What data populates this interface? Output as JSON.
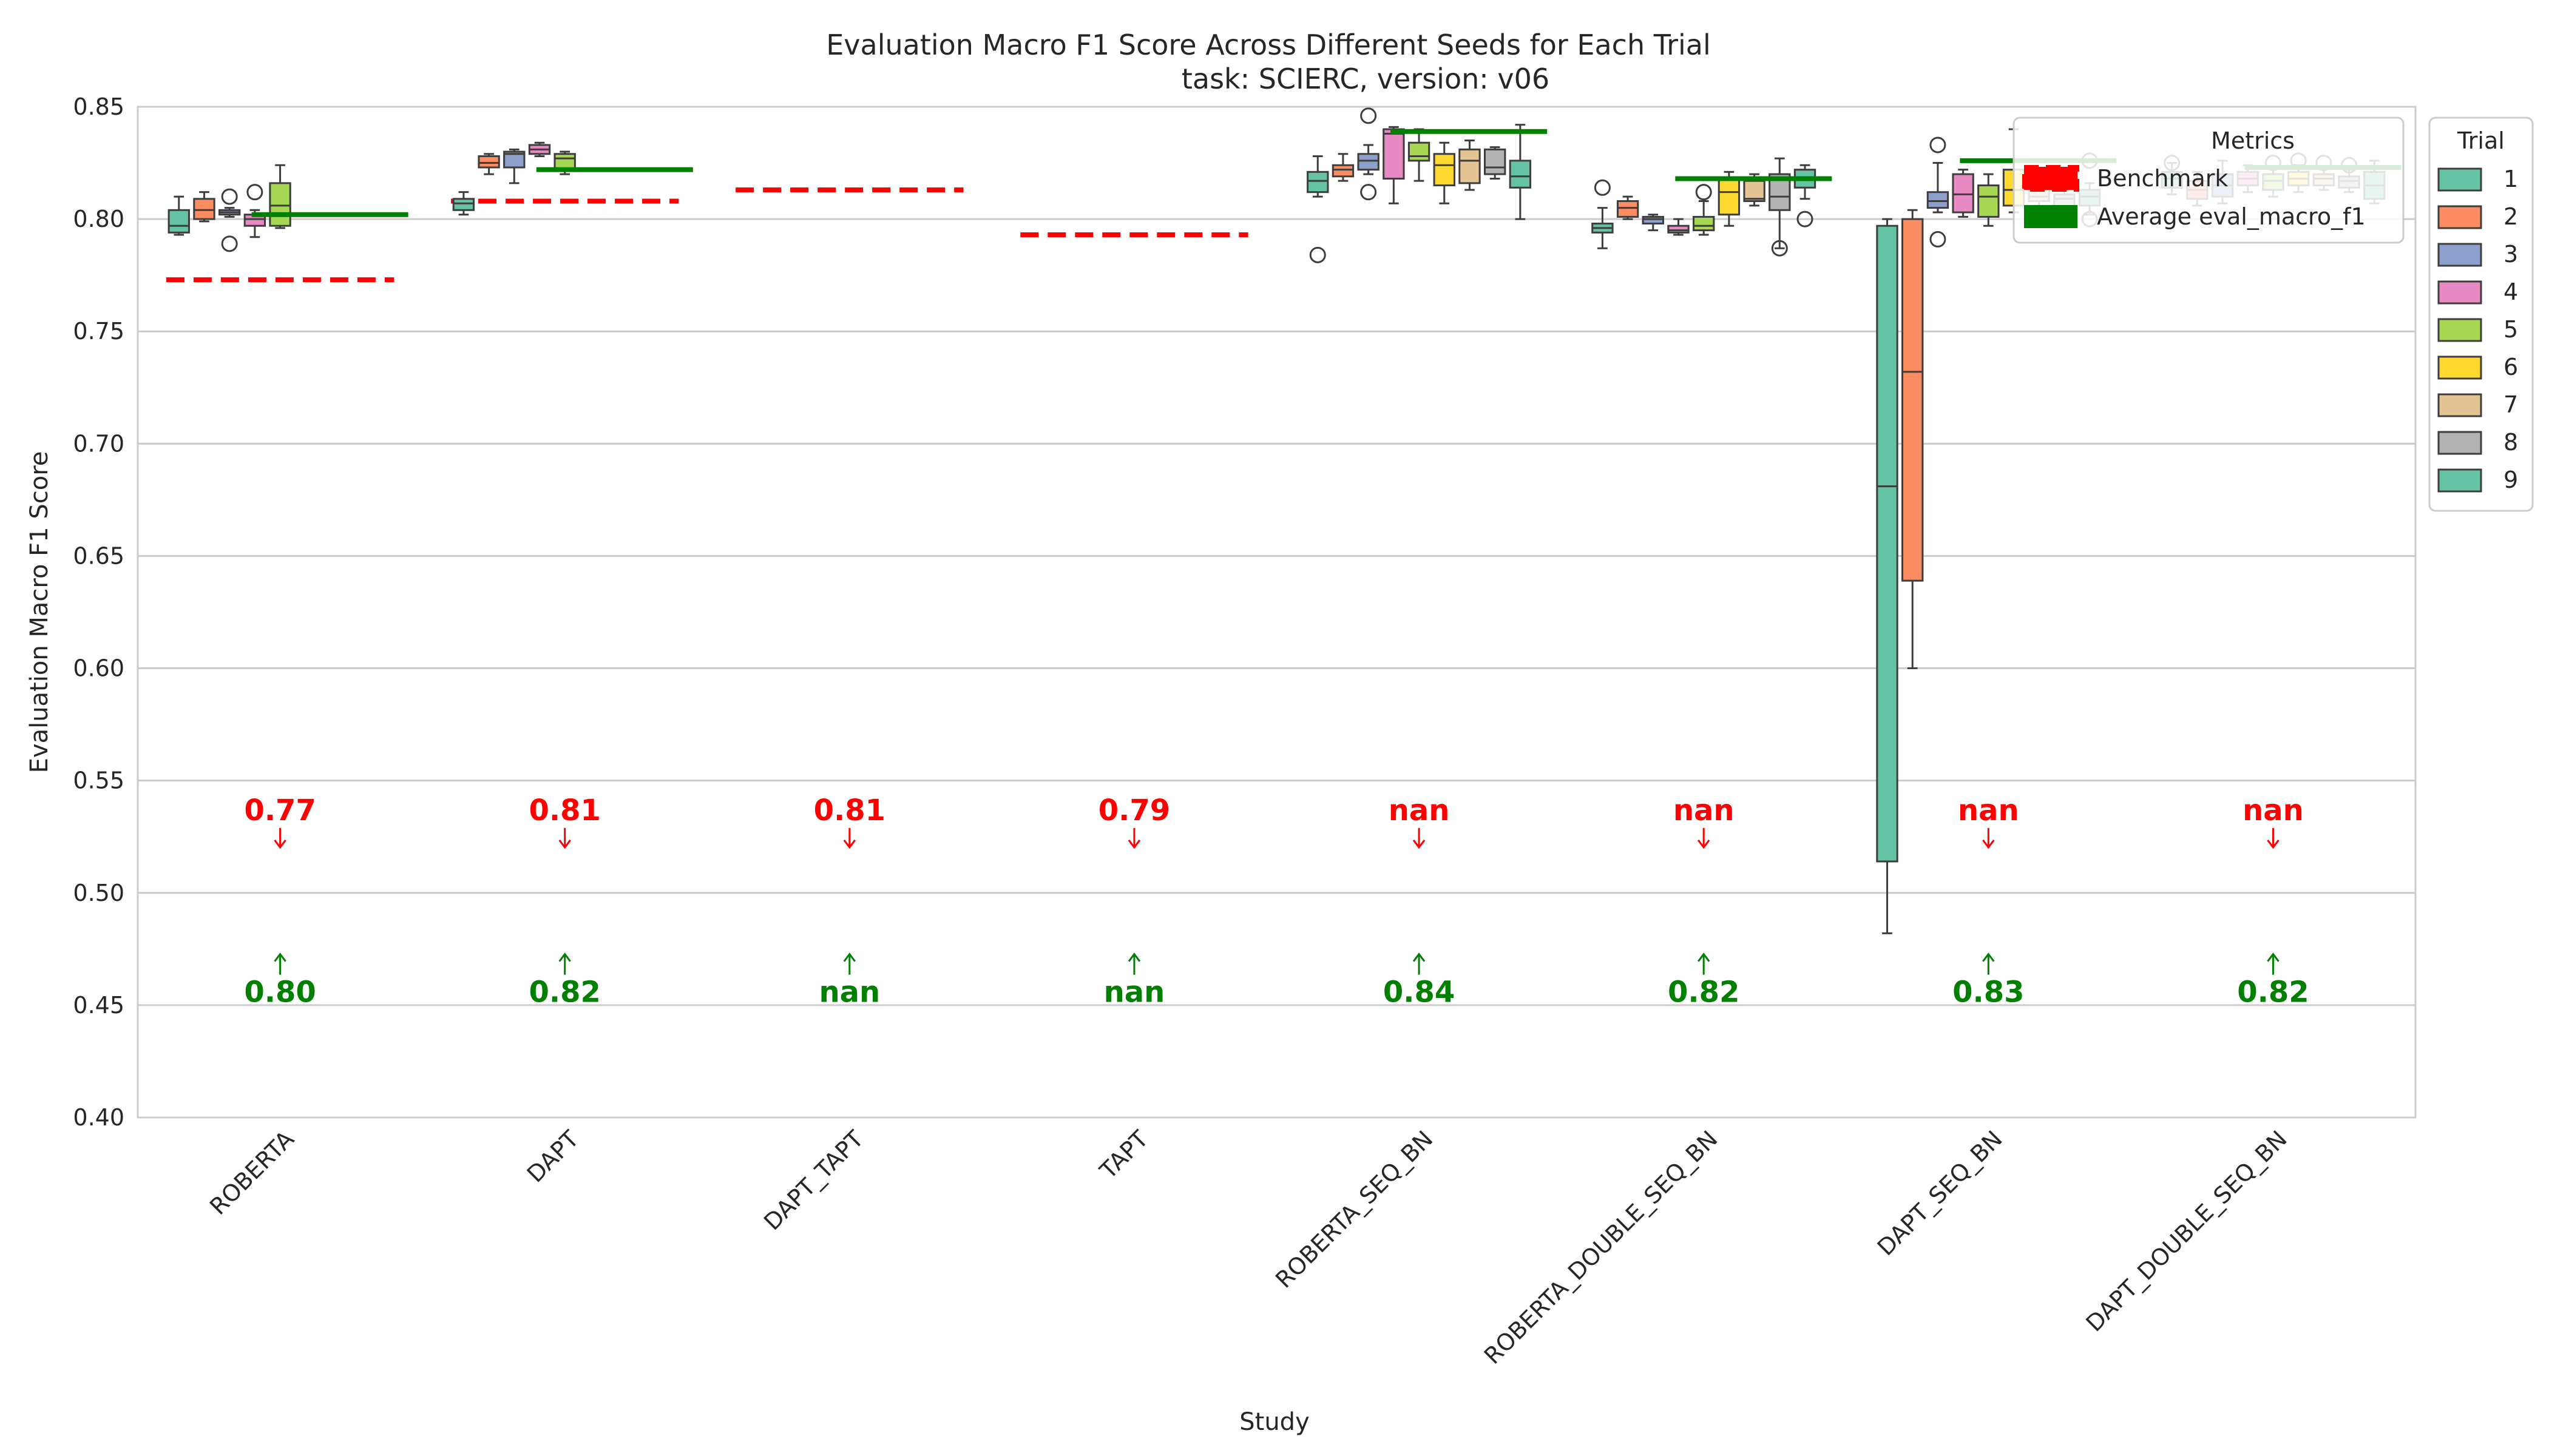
{
  "chart_data": {
    "type": "box",
    "title": "Evaluation Macro F1 Score Across Different Seeds for Each Trial",
    "subtitle": "task: SCIERC, version: v06",
    "xlabel": "Study",
    "ylabel": "Evaluation Macro F1 Score",
    "ylim": [
      0.4,
      0.85
    ],
    "yticks": [
      "0.40",
      "0.45",
      "0.50",
      "0.55",
      "0.60",
      "0.65",
      "0.70",
      "0.75",
      "0.80",
      "0.85"
    ],
    "grid": true,
    "categories": [
      "ROBERTA",
      "DAPT",
      "DAPT_TAPT",
      "TAPT",
      "ROBERTA_SEQ_BN",
      "ROBERTA_DOUBLE_SEQ_BN",
      "DAPT_SEQ_BN",
      "DAPT_DOUBLE_SEQ_BN"
    ],
    "trial_colors": [
      "#66c2a5",
      "#fc8d62",
      "#8da0cb",
      "#e78ac3",
      "#a6d854",
      "#ffd92f",
      "#e5c494",
      "#b3b3b3",
      "#66c2a5"
    ],
    "boxes": [
      {
        "study": "ROBERTA",
        "trials": [
          {
            "trial": 1,
            "whislo": 0.793,
            "q1": 0.794,
            "med": 0.797,
            "q3": 0.804,
            "whishi": 0.81,
            "fliers": []
          },
          {
            "trial": 2,
            "whislo": 0.799,
            "q1": 0.8,
            "med": 0.804,
            "q3": 0.809,
            "whishi": 0.812,
            "fliers": []
          },
          {
            "trial": 3,
            "whislo": 0.801,
            "q1": 0.802,
            "med": 0.803,
            "q3": 0.804,
            "whishi": 0.805,
            "fliers": [
              0.789,
              0.81
            ]
          },
          {
            "trial": 4,
            "whislo": 0.792,
            "q1": 0.797,
            "med": 0.8,
            "q3": 0.802,
            "whishi": 0.804,
            "fliers": [
              0.812
            ]
          },
          {
            "trial": 5,
            "whislo": 0.796,
            "q1": 0.797,
            "med": 0.806,
            "q3": 0.816,
            "whishi": 0.824,
            "fliers": []
          }
        ]
      },
      {
        "study": "DAPT",
        "trials": [
          {
            "trial": 1,
            "whislo": 0.802,
            "q1": 0.804,
            "med": 0.807,
            "q3": 0.809,
            "whishi": 0.812,
            "fliers": []
          },
          {
            "trial": 2,
            "whislo": 0.82,
            "q1": 0.823,
            "med": 0.825,
            "q3": 0.828,
            "whishi": 0.829,
            "fliers": []
          },
          {
            "trial": 3,
            "whislo": 0.816,
            "q1": 0.823,
            "med": 0.829,
            "q3": 0.83,
            "whishi": 0.831,
            "fliers": []
          },
          {
            "trial": 4,
            "whislo": 0.828,
            "q1": 0.829,
            "med": 0.831,
            "q3": 0.833,
            "whishi": 0.834,
            "fliers": []
          },
          {
            "trial": 5,
            "whislo": 0.82,
            "q1": 0.822,
            "med": 0.827,
            "q3": 0.829,
            "whishi": 0.83,
            "fliers": []
          }
        ]
      },
      {
        "study": "DAPT_TAPT",
        "trials": []
      },
      {
        "study": "TAPT",
        "trials": []
      },
      {
        "study": "ROBERTA_SEQ_BN",
        "trials": [
          {
            "trial": 1,
            "whislo": 0.81,
            "q1": 0.812,
            "med": 0.817,
            "q3": 0.821,
            "whishi": 0.828,
            "fliers": [
              0.784
            ]
          },
          {
            "trial": 2,
            "whislo": 0.817,
            "q1": 0.819,
            "med": 0.822,
            "q3": 0.824,
            "whishi": 0.829,
            "fliers": []
          },
          {
            "trial": 3,
            "whislo": 0.82,
            "q1": 0.822,
            "med": 0.826,
            "q3": 0.829,
            "whishi": 0.833,
            "fliers": [
              0.812,
              0.846
            ]
          },
          {
            "trial": 4,
            "whislo": 0.807,
            "q1": 0.818,
            "med": 0.838,
            "q3": 0.84,
            "whishi": 0.841,
            "fliers": []
          },
          {
            "trial": 5,
            "whislo": 0.817,
            "q1": 0.826,
            "med": 0.828,
            "q3": 0.834,
            "whishi": 0.84,
            "fliers": []
          },
          {
            "trial": 6,
            "whislo": 0.807,
            "q1": 0.815,
            "med": 0.824,
            "q3": 0.829,
            "whishi": 0.834,
            "fliers": []
          },
          {
            "trial": 7,
            "whislo": 0.813,
            "q1": 0.816,
            "med": 0.826,
            "q3": 0.831,
            "whishi": 0.835,
            "fliers": []
          },
          {
            "trial": 8,
            "whislo": 0.818,
            "q1": 0.82,
            "med": 0.823,
            "q3": 0.831,
            "whishi": 0.832,
            "fliers": []
          },
          {
            "trial": 9,
            "whislo": 0.8,
            "q1": 0.814,
            "med": 0.819,
            "q3": 0.826,
            "whishi": 0.842,
            "fliers": []
          }
        ]
      },
      {
        "study": "ROBERTA_DOUBLE_SEQ_BN",
        "trials": [
          {
            "trial": 1,
            "whislo": 0.787,
            "q1": 0.794,
            "med": 0.796,
            "q3": 0.798,
            "whishi": 0.805,
            "fliers": [
              0.814
            ]
          },
          {
            "trial": 2,
            "whislo": 0.8,
            "q1": 0.801,
            "med": 0.805,
            "q3": 0.808,
            "whishi": 0.81,
            "fliers": []
          },
          {
            "trial": 3,
            "whislo": 0.795,
            "q1": 0.798,
            "med": 0.8,
            "q3": 0.801,
            "whishi": 0.802,
            "fliers": []
          },
          {
            "trial": 4,
            "whislo": 0.793,
            "q1": 0.794,
            "med": 0.795,
            "q3": 0.797,
            "whishi": 0.8,
            "fliers": []
          },
          {
            "trial": 5,
            "whislo": 0.793,
            "q1": 0.795,
            "med": 0.797,
            "q3": 0.801,
            "whishi": 0.808,
            "fliers": [
              0.812
            ]
          },
          {
            "trial": 6,
            "whislo": 0.797,
            "q1": 0.802,
            "med": 0.812,
            "q3": 0.818,
            "whishi": 0.821,
            "fliers": []
          },
          {
            "trial": 7,
            "whislo": 0.806,
            "q1": 0.808,
            "med": 0.809,
            "q3": 0.817,
            "whishi": 0.82,
            "fliers": []
          },
          {
            "trial": 8,
            "whislo": 0.787,
            "q1": 0.804,
            "med": 0.81,
            "q3": 0.82,
            "whishi": 0.827,
            "fliers": [
              0.787
            ]
          },
          {
            "trial": 9,
            "whislo": 0.809,
            "q1": 0.814,
            "med": 0.818,
            "q3": 0.822,
            "whishi": 0.824,
            "fliers": [
              0.8
            ]
          }
        ]
      },
      {
        "study": "DAPT_SEQ_BN",
        "trials": [
          {
            "trial": 1,
            "whislo": 0.482,
            "q1": 0.514,
            "med": 0.681,
            "q3": 0.797,
            "whishi": 0.8,
            "fliers": []
          },
          {
            "trial": 2,
            "whislo": 0.6,
            "q1": 0.639,
            "med": 0.732,
            "q3": 0.8,
            "whishi": 0.804,
            "fliers": []
          },
          {
            "trial": 3,
            "whislo": 0.803,
            "q1": 0.805,
            "med": 0.808,
            "q3": 0.812,
            "whishi": 0.825,
            "fliers": [
              0.791,
              0.833
            ]
          },
          {
            "trial": 4,
            "whislo": 0.801,
            "q1": 0.803,
            "med": 0.811,
            "q3": 0.82,
            "whishi": 0.822,
            "fliers": []
          },
          {
            "trial": 5,
            "whislo": 0.797,
            "q1": 0.801,
            "med": 0.81,
            "q3": 0.815,
            "whishi": 0.82,
            "fliers": []
          },
          {
            "trial": 6,
            "whislo": 0.803,
            "q1": 0.806,
            "med": 0.813,
            "q3": 0.822,
            "whishi": 0.84,
            "fliers": []
          },
          {
            "trial": 7,
            "whislo": 0.805,
            "q1": 0.808,
            "med": 0.81,
            "q3": 0.814,
            "whishi": 0.82,
            "fliers": []
          },
          {
            "trial": 8,
            "whislo": 0.804,
            "q1": 0.806,
            "med": 0.809,
            "q3": 0.811,
            "whishi": 0.813,
            "fliers": []
          },
          {
            "trial": 9,
            "whislo": 0.802,
            "q1": 0.806,
            "med": 0.81,
            "q3": 0.813,
            "whishi": 0.816,
            "fliers": [
              0.8,
              0.826
            ]
          }
        ]
      },
      {
        "study": "DAPT_DOUBLE_SEQ_BN",
        "trials": [
          {
            "trial": 1,
            "whislo": 0.811,
            "q1": 0.814,
            "med": 0.818,
            "q3": 0.821,
            "whishi": 0.825,
            "fliers": [
              0.825
            ]
          },
          {
            "trial": 2,
            "whislo": 0.806,
            "q1": 0.809,
            "med": 0.813,
            "q3": 0.817,
            "whishi": 0.821,
            "fliers": []
          },
          {
            "trial": 3,
            "whislo": 0.807,
            "q1": 0.81,
            "med": 0.815,
            "q3": 0.82,
            "whishi": 0.826,
            "fliers": []
          },
          {
            "trial": 4,
            "whislo": 0.812,
            "q1": 0.815,
            "med": 0.818,
            "q3": 0.821,
            "whishi": 0.824,
            "fliers": []
          },
          {
            "trial": 5,
            "whislo": 0.81,
            "q1": 0.813,
            "med": 0.817,
            "q3": 0.82,
            "whishi": 0.823,
            "fliers": [
              0.825
            ]
          },
          {
            "trial": 6,
            "whislo": 0.812,
            "q1": 0.815,
            "med": 0.818,
            "q3": 0.821,
            "whishi": 0.824,
            "fliers": [
              0.826
            ]
          },
          {
            "trial": 7,
            "whislo": 0.813,
            "q1": 0.815,
            "med": 0.818,
            "q3": 0.82,
            "whishi": 0.823,
            "fliers": [
              0.825
            ]
          },
          {
            "trial": 8,
            "whislo": 0.812,
            "q1": 0.814,
            "med": 0.817,
            "q3": 0.819,
            "whishi": 0.822,
            "fliers": [
              0.824
            ]
          },
          {
            "trial": 9,
            "whislo": 0.807,
            "q1": 0.809,
            "med": 0.815,
            "q3": 0.821,
            "whishi": 0.826,
            "fliers": []
          }
        ]
      }
    ],
    "benchmark": [
      0.773,
      0.808,
      0.813,
      0.793,
      null,
      null,
      null,
      null
    ],
    "average": [
      0.802,
      0.822,
      null,
      null,
      0.839,
      0.818,
      0.826,
      0.823
    ],
    "benchmark_labels": [
      "0.77",
      "0.81",
      "0.81",
      "0.79",
      "nan",
      "nan",
      "nan",
      "nan"
    ],
    "average_labels": [
      "0.80",
      "0.82",
      "nan",
      "nan",
      "0.84",
      "0.82",
      "0.83",
      "0.82"
    ],
    "benchmark_label_y": 0.537,
    "average_label_y": 0.456,
    "legend_metrics": {
      "title": "Metrics",
      "placement": "top-right (inside axes)",
      "items": [
        {
          "label": "Benchmark",
          "color": "#ff0000",
          "style": "dashed"
        },
        {
          "label": "Average eval_macro_f1",
          "color": "#008000",
          "style": "solid"
        }
      ]
    },
    "legend_trial": {
      "title": "Trial",
      "placement": "outside right",
      "items": [
        "1",
        "2",
        "3",
        "4",
        "5",
        "6",
        "7",
        "8",
        "9"
      ]
    },
    "colors": {
      "benchmark": "#ff0000",
      "average": "#008000",
      "grid": "#cccccc",
      "box_edge": "#3d3d3d"
    }
  }
}
